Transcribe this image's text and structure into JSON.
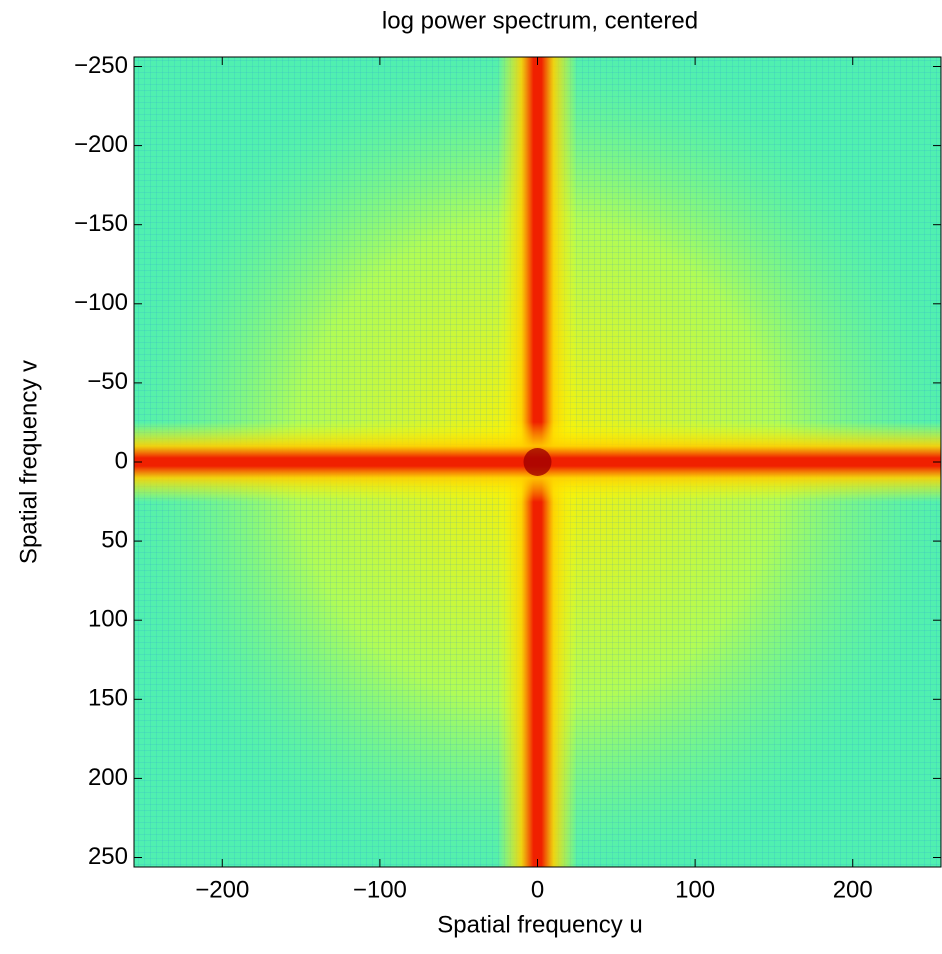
{
  "chart_data": {
    "type": "heatmap",
    "title": "log power spectrum, centered",
    "x_label": "Spatial frequency u",
    "y_label": "Spatial frequency v",
    "xlim": [
      -256,
      256
    ],
    "ylim": [
      -256,
      256
    ],
    "y_reversed": true,
    "xticks": [
      {
        "value": -200,
        "label": "−200"
      },
      {
        "value": -100,
        "label": "−100"
      },
      0,
      100,
      200
    ],
    "yticks": [
      {
        "value": -250,
        "label": "−250"
      },
      {
        "value": -200,
        "label": "−200"
      },
      {
        "value": -150,
        "label": "−150"
      },
      {
        "value": -100,
        "label": "−100"
      },
      {
        "value": -50,
        "label": "−50"
      },
      0,
      50,
      100,
      150,
      200,
      250
    ]
  }
}
